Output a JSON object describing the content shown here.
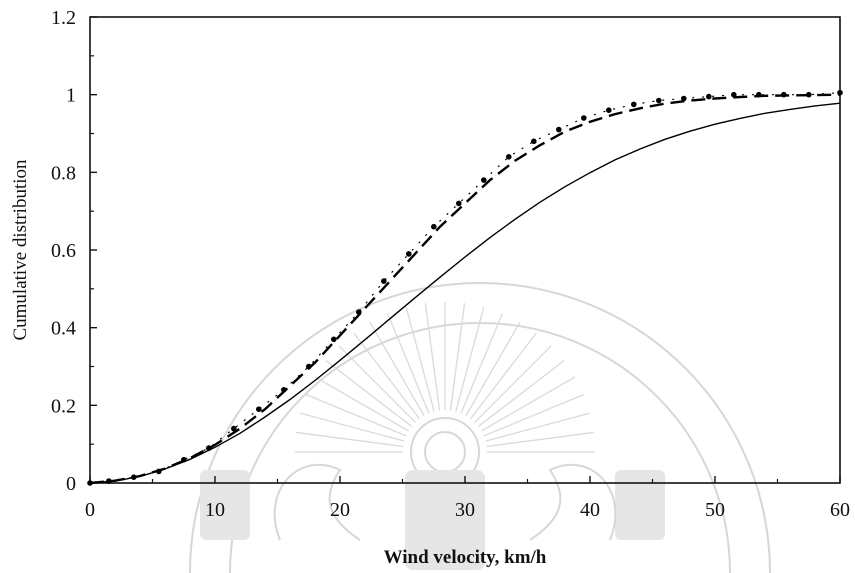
{
  "chart_data": {
    "type": "line",
    "title": "",
    "xlabel": "Wind velocity, km/h",
    "ylabel": "Cumulative distribution",
    "xlim": [
      0,
      60
    ],
    "ylim": [
      0,
      1.2
    ],
    "x_ticks": [
      "0",
      "10",
      "20",
      "30",
      "40",
      "50",
      "60"
    ],
    "y_ticks": [
      "0",
      "0.2",
      "0.4",
      "0.6",
      "0.8",
      "1",
      "1.2"
    ],
    "grid": false,
    "legend": "none",
    "series": [
      {
        "style": "dotted-markers",
        "color": "#000000",
        "x": [
          0,
          1.5,
          3.5,
          5.5,
          7.5,
          9.5,
          11.5,
          13.5,
          15.5,
          17.5,
          19.5,
          21.5,
          23.5,
          25.5,
          27.5,
          29.5,
          31.5,
          33.5,
          35.5,
          37.5,
          39.5,
          41.5,
          43.5,
          45.5,
          47.5,
          49.5,
          51.5,
          53.5,
          55.5,
          57.5,
          60
        ],
        "y": [
          0.0,
          0.005,
          0.015,
          0.03,
          0.06,
          0.09,
          0.14,
          0.19,
          0.24,
          0.3,
          0.37,
          0.44,
          0.52,
          0.59,
          0.66,
          0.72,
          0.78,
          0.84,
          0.88,
          0.91,
          0.94,
          0.96,
          0.975,
          0.985,
          0.99,
          0.995,
          1.0,
          1.0,
          1.0,
          1.0,
          1.005
        ]
      },
      {
        "style": "dashed",
        "color": "#000000",
        "x": [
          0,
          2,
          4,
          6,
          8,
          10,
          12,
          14,
          16,
          18,
          20,
          22,
          24,
          26,
          28,
          30,
          32,
          34,
          36,
          38,
          40,
          42,
          44,
          46,
          48,
          50,
          52,
          54,
          56,
          58,
          60
        ],
        "y": [
          0.0,
          0.006,
          0.018,
          0.037,
          0.064,
          0.098,
          0.14,
          0.19,
          0.25,
          0.31,
          0.38,
          0.45,
          0.52,
          0.59,
          0.66,
          0.72,
          0.78,
          0.83,
          0.87,
          0.905,
          0.93,
          0.95,
          0.965,
          0.977,
          0.985,
          0.99,
          0.994,
          0.997,
          0.998,
          0.999,
          1.0
        ]
      },
      {
        "style": "solid",
        "color": "#000000",
        "x": [
          0,
          2,
          4,
          6,
          8,
          10,
          12,
          14,
          16,
          18,
          20,
          22,
          24,
          26,
          28,
          30,
          32,
          34,
          36,
          38,
          40,
          42,
          44,
          46,
          48,
          50,
          52,
          54,
          56,
          58,
          60
        ],
        "y": [
          0.0,
          0.005,
          0.017,
          0.036,
          0.061,
          0.092,
          0.128,
          0.17,
          0.215,
          0.264,
          0.316,
          0.369,
          0.423,
          0.477,
          0.53,
          0.582,
          0.632,
          0.679,
          0.723,
          0.763,
          0.799,
          0.832,
          0.86,
          0.885,
          0.906,
          0.924,
          0.939,
          0.952,
          0.962,
          0.971,
          0.978
        ]
      }
    ]
  }
}
